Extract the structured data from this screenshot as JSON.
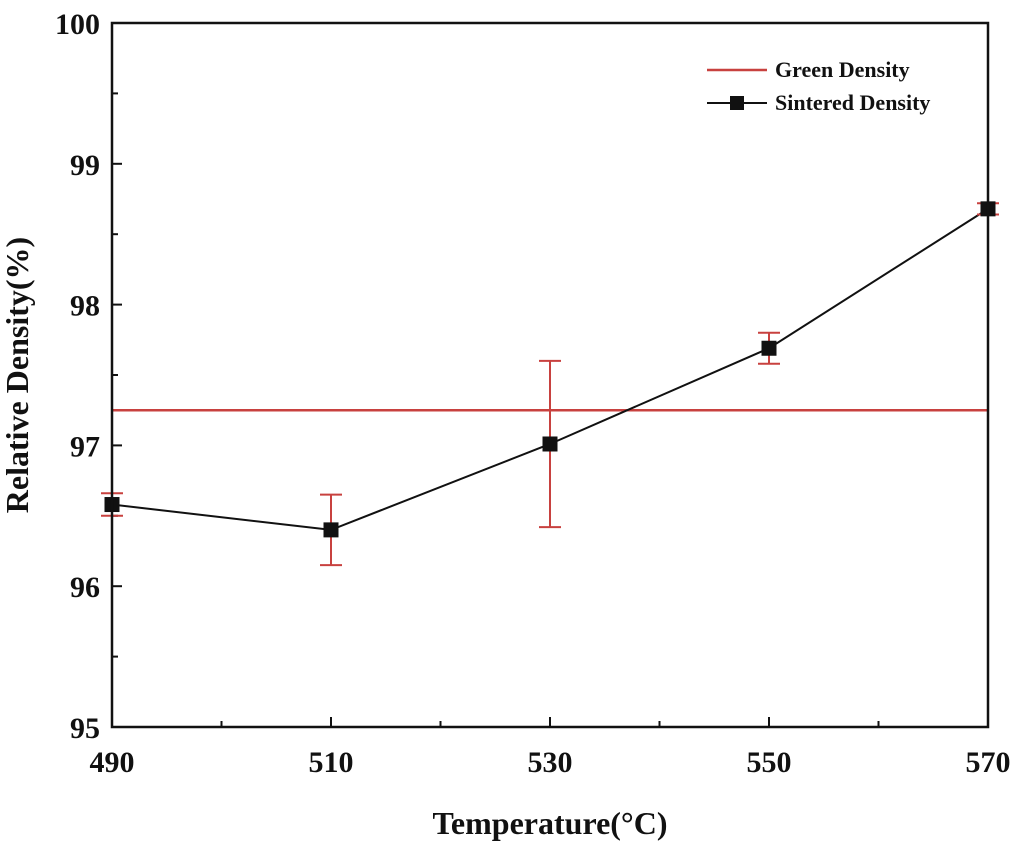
{
  "chart_data": {
    "type": "line",
    "title": "",
    "xlabel": "Temperature(°C)",
    "ylabel": "Relative Density(%)",
    "xlim": [
      490,
      570
    ],
    "ylim": [
      95,
      100
    ],
    "x_ticks": [
      490,
      510,
      530,
      550,
      570
    ],
    "x_tick_labels": [
      "490",
      "510",
      "530",
      "550",
      "570"
    ],
    "y_ticks": [
      95,
      96,
      97,
      98,
      99,
      100
    ],
    "y_tick_labels": [
      "95",
      "96",
      "97",
      "98",
      "99",
      "100"
    ],
    "grid": false,
    "legend_position": "top-right",
    "series": [
      {
        "name": "Green Density",
        "kind": "horizontal-line",
        "color": "#c8413f",
        "value": 97.25
      },
      {
        "name": "Sintered Density",
        "kind": "line-marker",
        "color": "#111111",
        "marker": "square",
        "error_bar_color": "#c8413f",
        "x": [
          490,
          510,
          530,
          550,
          570
        ],
        "y": [
          96.58,
          96.4,
          97.01,
          97.69,
          98.68
        ],
        "error": [
          0.08,
          0.25,
          0.59,
          0.11,
          0.04
        ]
      }
    ]
  }
}
